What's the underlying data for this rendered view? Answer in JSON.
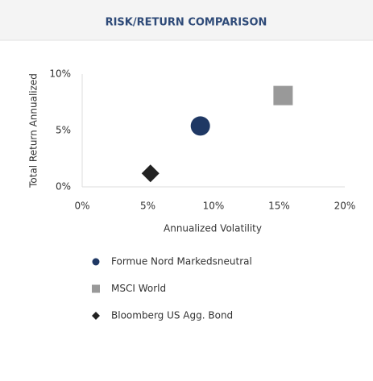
{
  "chart_data": {
    "type": "scatter",
    "title": "RISK/RETURN COMPARISON",
    "xlabel": "Annualized Volatility",
    "ylabel": "Total Return Annualized",
    "xlim": [
      0,
      20
    ],
    "ylim": [
      0,
      10
    ],
    "xticks": [
      {
        "value": 0,
        "label": "0%"
      },
      {
        "value": 5,
        "label": "5%"
      },
      {
        "value": 10,
        "label": "10%"
      },
      {
        "value": 15,
        "label": "15%"
      },
      {
        "value": 20,
        "label": "20%"
      }
    ],
    "yticks": [
      {
        "value": 0,
        "label": "0%"
      },
      {
        "value": 5,
        "label": "5%"
      },
      {
        "value": 10,
        "label": "10%"
      }
    ],
    "grid": false,
    "series": [
      {
        "name": "Formue Nord Markedsneutral",
        "color": "#1f3864",
        "marker": "circle",
        "x": [
          9.0
        ],
        "values": [
          5.4
        ]
      },
      {
        "name": "MSCI World",
        "color": "#999999",
        "marker": "square",
        "x": [
          15.3
        ],
        "values": [
          8.1
        ]
      },
      {
        "name": "Bloomberg US Agg. Bond",
        "color": "#222222",
        "marker": "diamond",
        "x": [
          5.2
        ],
        "values": [
          1.2
        ]
      }
    ]
  }
}
